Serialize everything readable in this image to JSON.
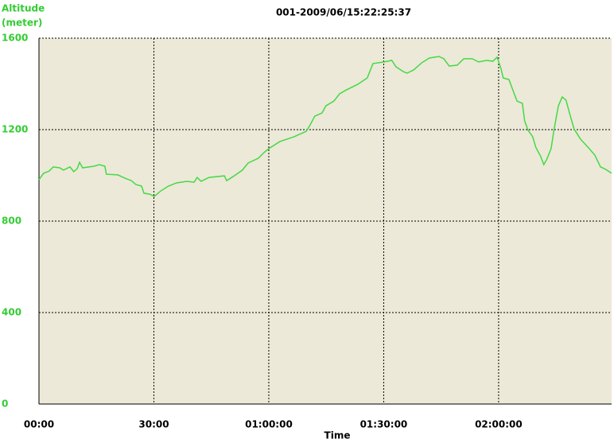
{
  "chart_data": {
    "type": "line",
    "title": "001-2009/06/15:22:25:37",
    "y_label": "Altitude",
    "y_unit": "(meter)",
    "x_label": "Time",
    "background": "#ece9d8",
    "grid": true,
    "xlim": [
      0,
      149.5
    ],
    "ylim": [
      0,
      1600
    ],
    "xticks": [
      {
        "value": 0,
        "label": "00:00"
      },
      {
        "value": 30,
        "label": "30:00"
      },
      {
        "value": 60,
        "label": "01:00:00"
      },
      {
        "value": 90,
        "label": "01:30:00"
      },
      {
        "value": 120,
        "label": "02:00:00"
      }
    ],
    "yticks": [
      0,
      400,
      800,
      1200,
      1600
    ],
    "series": [
      {
        "color": "#44d944",
        "x": [
          0,
          1.2,
          2.7,
          3.7,
          5.4,
          6.4,
          8.1,
          9.1,
          10.0,
          10.6,
          11.4,
          14.3,
          15.8,
          17.2,
          17.6,
          20.6,
          22.4,
          24.1,
          25.3,
          26.8,
          27.4,
          28.9,
          30.1,
          31.8,
          33.8,
          35.9,
          38.6,
          40.5,
          41.3,
          42.3,
          44.4,
          48.4,
          49.0,
          50.7,
          53.1,
          54.6,
          57.3,
          58.7,
          60.0,
          62.9,
          66.6,
          69.8,
          70.8,
          72.0,
          73.9,
          74.9,
          77.0,
          78.5,
          80.3,
          83.2,
          85.7,
          87.2,
          90.1,
          92.1,
          93.2,
          95.1,
          96.1,
          97.8,
          99.9,
          101.9,
          104.4,
          105.7,
          107.1,
          109.2,
          110.9,
          113.1,
          114.8,
          116.9,
          118.5,
          119.6,
          120.6,
          121.2,
          122.7,
          123.7,
          124.8,
          126.2,
          126.8,
          127.7,
          128.9,
          129.7,
          131.0,
          131.8,
          132.6,
          133.7,
          134.5,
          135.6,
          136.6,
          137.6,
          138.5,
          139.7,
          141.4,
          143.5,
          145.1,
          146.6,
          148.0,
          149.5
        ],
        "values": [
          981,
          1009,
          1019,
          1037,
          1033,
          1023,
          1037,
          1016,
          1030,
          1057,
          1033,
          1040,
          1047,
          1040,
          1005,
          1002,
          988,
          977,
          960,
          953,
          922,
          918,
          908,
          932,
          953,
          967,
          974,
          970,
          991,
          974,
          991,
          998,
          977,
          995,
          1023,
          1054,
          1075,
          1099,
          1117,
          1148,
          1169,
          1193,
          1221,
          1259,
          1273,
          1304,
          1325,
          1357,
          1374,
          1398,
          1426,
          1489,
          1496,
          1503,
          1475,
          1454,
          1447,
          1461,
          1492,
          1513,
          1520,
          1510,
          1478,
          1482,
          1510,
          1510,
          1496,
          1503,
          1499,
          1517,
          1468,
          1426,
          1419,
          1374,
          1325,
          1315,
          1238,
          1197,
          1169,
          1123,
          1082,
          1047,
          1071,
          1117,
          1203,
          1304,
          1343,
          1329,
          1273,
          1203,
          1158,
          1120,
          1089,
          1037,
          1026,
          1009
        ]
      }
    ]
  }
}
